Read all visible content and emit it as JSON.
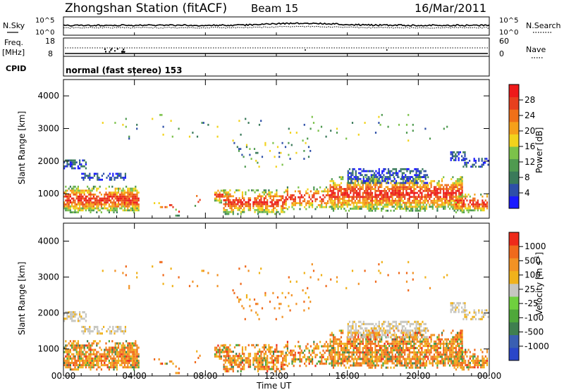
{
  "header": {
    "title": "Zhongshan Station (fitACF)",
    "beam": "Beam 15",
    "date": "16/Mar/2011"
  },
  "top_panels": {
    "nsky_label": "N.Sky",
    "nsearch_label": "N.Search",
    "nsky_ticks": [
      "10^5",
      "10^0"
    ],
    "nsearch_ticks": [
      "10^5",
      "10^0"
    ],
    "freq_label": "Freq.",
    "freq_unit": "[MHz]",
    "freq_ticks": [
      "18",
      "8"
    ],
    "nave_label": "Nave",
    "nave_ticks": [
      "60",
      "0"
    ],
    "cpid_label": "CPID",
    "cpid_value": "normal (fast stereo) 153"
  },
  "colors": {
    "power_scale": [
      "#1a1aff",
      "#2e4fa8",
      "#3a7a5a",
      "#4f9a50",
      "#7cc24a",
      "#f2d31c",
      "#f6a01a",
      "#f07018",
      "#e8401e",
      "#ee1a1a"
    ],
    "velocity_scale": [
      "#2a46c9",
      "#3a5fb2",
      "#3f7f4f",
      "#4fa83a",
      "#6fd03e",
      "#c6c6c0",
      "#f0b21c",
      "#f29224",
      "#f06a1c",
      "#ee2a1a"
    ]
  },
  "chart_data": [
    {
      "type": "heatmap",
      "name": "power",
      "ylabel": "Slant Range [km]",
      "xlabel": "Time UT",
      "xticks": [
        "00:00",
        "04:00",
        "08:00",
        "12:00",
        "16:00",
        "20:00",
        "00:00"
      ],
      "yticks": [
        "1000",
        "2000",
        "3000",
        "4000"
      ],
      "ylim": [
        250,
        4500
      ],
      "xlim_hours": [
        0,
        24
      ],
      "colorbar_label": "Power [dB]",
      "colorbar_ticks": [
        "28",
        "24",
        "20",
        "16",
        "12",
        "8",
        "4"
      ],
      "colorbar_range": [
        0,
        30
      ]
    },
    {
      "type": "heatmap",
      "name": "velocity",
      "ylabel": "Slant Range [km]",
      "xlabel": "Time UT",
      "xticks": [
        "00:00",
        "04:00",
        "08:00",
        "12:00",
        "16:00",
        "20:00",
        "00:00"
      ],
      "yticks": [
        "1000",
        "2000",
        "3000",
        "4000"
      ],
      "ylim": [
        250,
        4500
      ],
      "xlim_hours": [
        0,
        24
      ],
      "colorbar_label": "Velocity [m s",
      "colorbar_label_sup": "-1",
      "colorbar_ticks": [
        "1000",
        "500",
        "100",
        "25",
        "-25",
        "-100",
        "-500",
        "-1000"
      ]
    }
  ]
}
